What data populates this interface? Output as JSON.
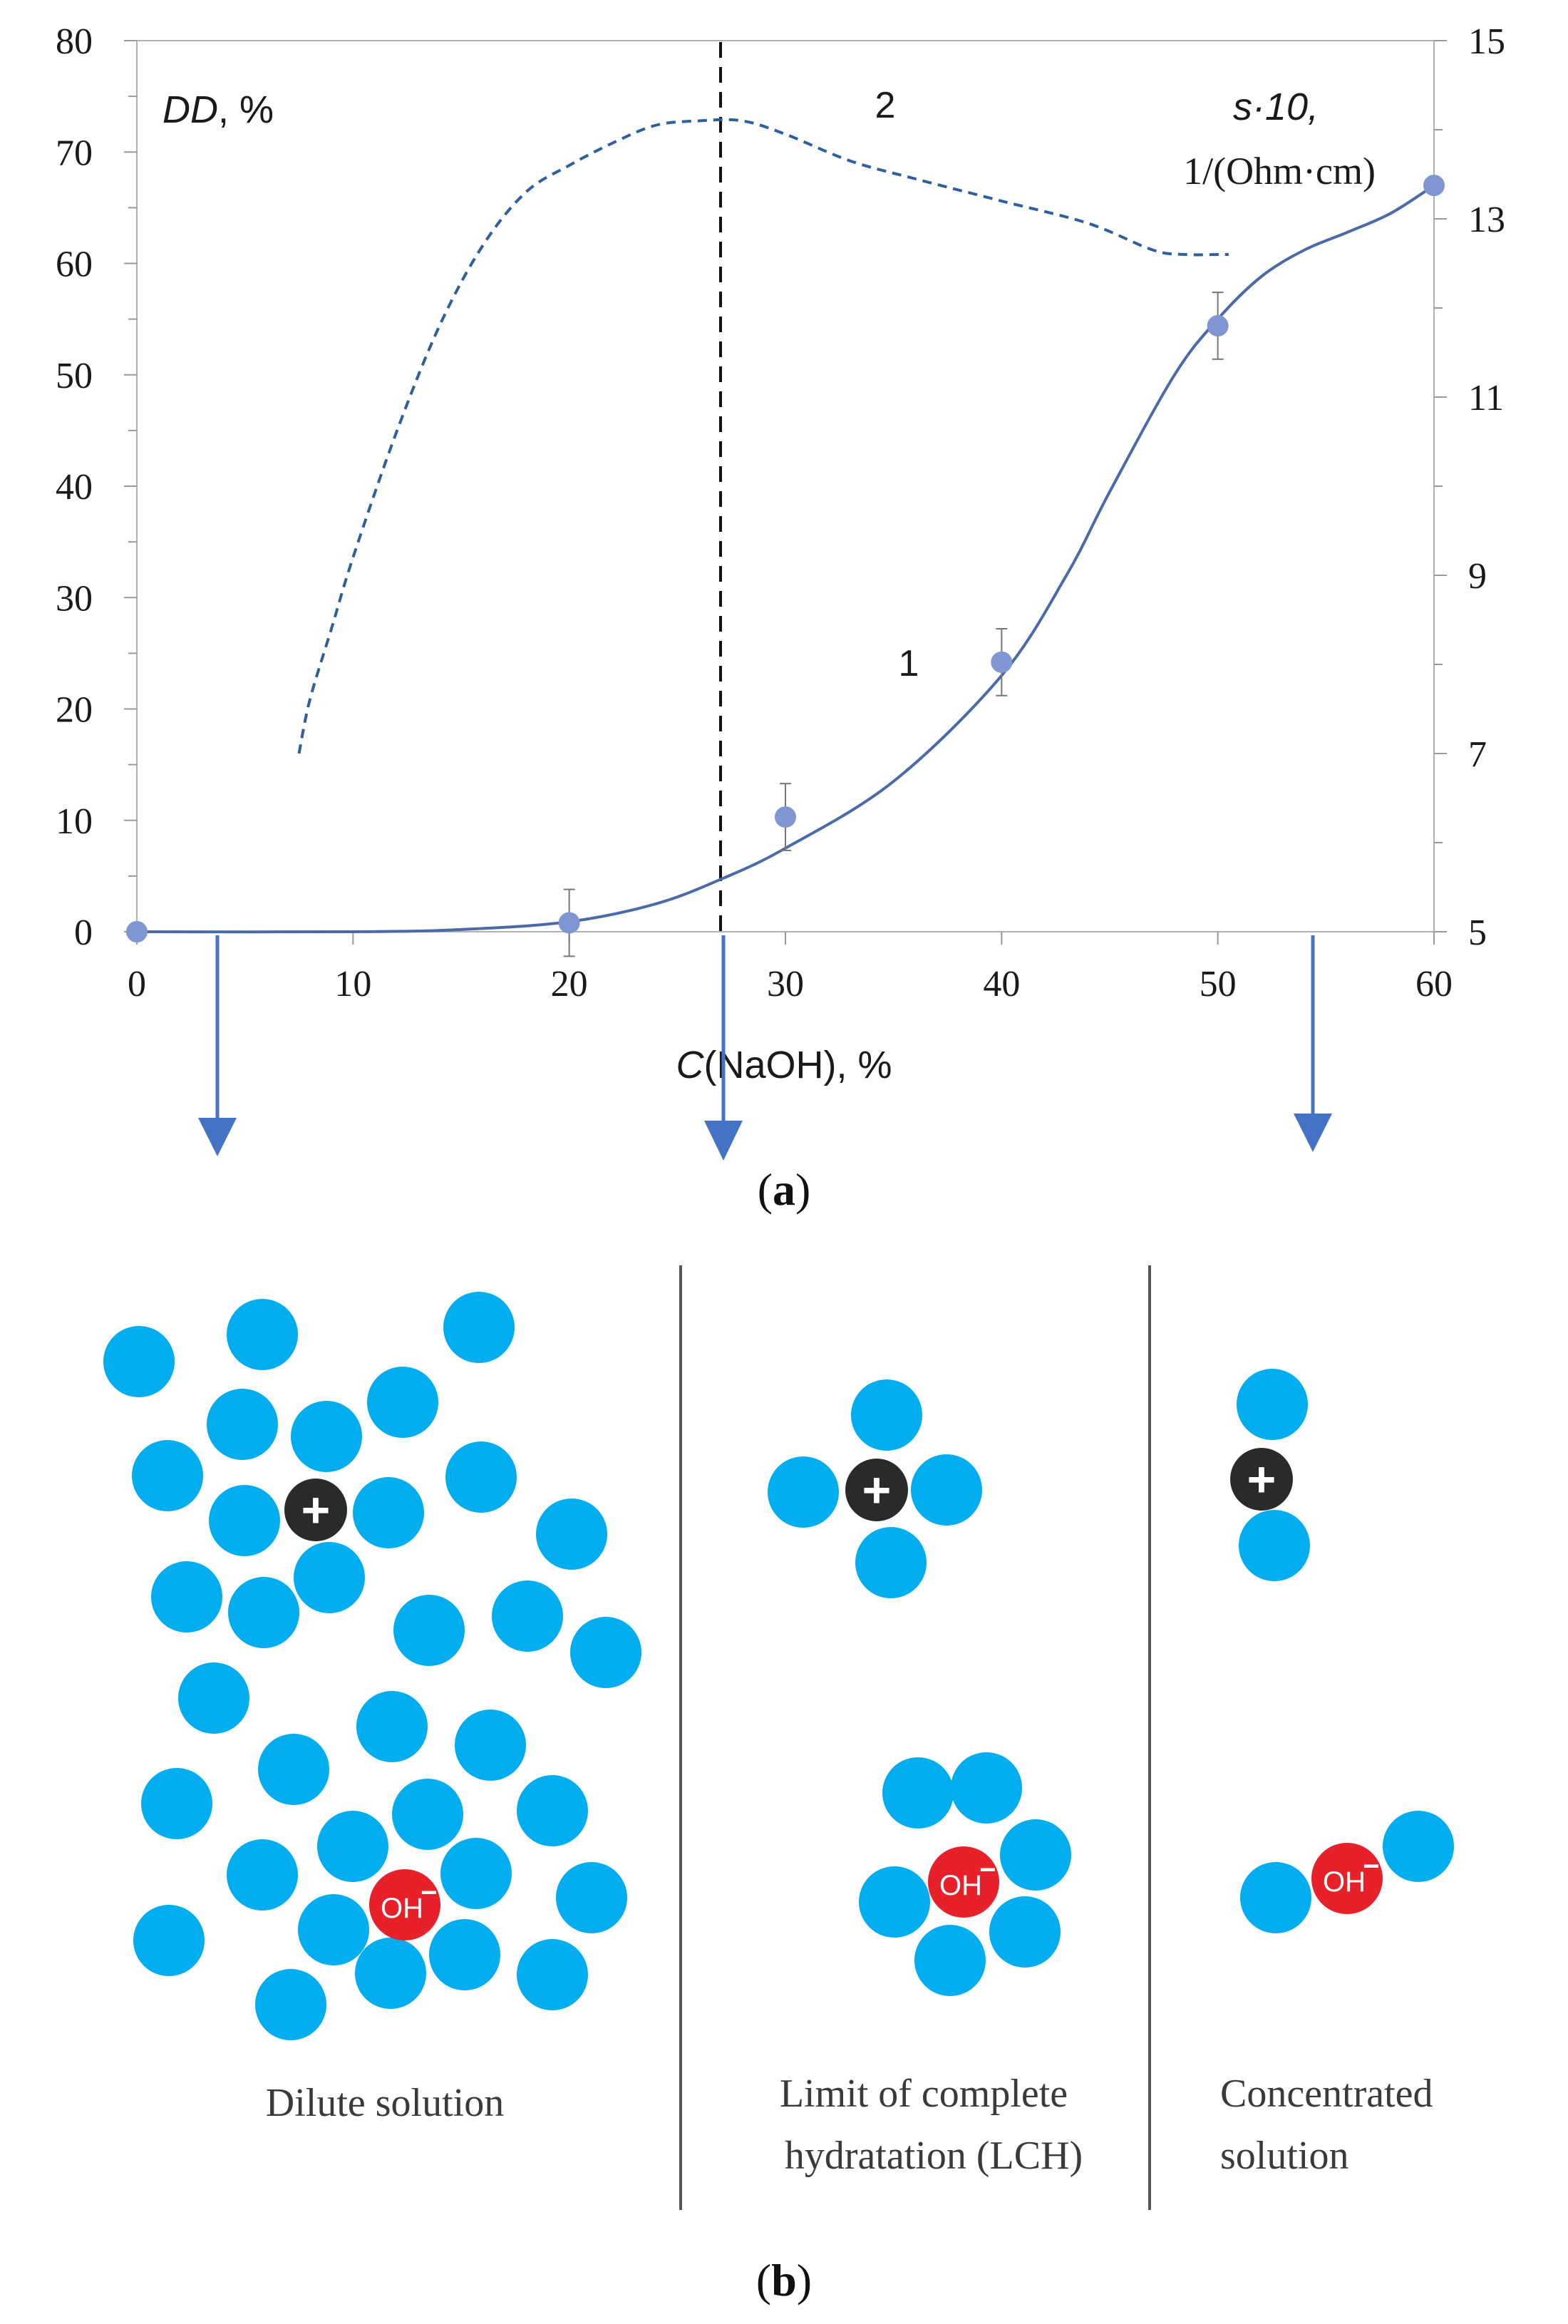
{
  "chart_data": {
    "type": "line",
    "title": "",
    "xlabel": "C(NaOH), %",
    "xlim": [
      0,
      60
    ],
    "x_ticks": [
      0,
      10,
      20,
      30,
      40,
      50,
      60
    ],
    "ylim_left": [
      0,
      80
    ],
    "y_left_ticks": [
      0,
      10,
      20,
      30,
      40,
      50,
      60,
      70,
      80
    ],
    "ylim_right": [
      5,
      15
    ],
    "y_right_ticks": [
      5,
      7,
      9,
      11,
      13,
      15
    ],
    "left_axis_label_italic": "DD",
    "left_axis_label_rest": ", %",
    "right_axis_label_line1": "s·10,",
    "right_axis_label_line2": "1/(Ohm·cm)",
    "divider_x": 27,
    "series": [
      {
        "name": "1",
        "axis": "left",
        "style": "solid",
        "color": "#4a6aa8",
        "points": [
          {
            "x": 0,
            "y": 0,
            "err": 0
          },
          {
            "x": 20,
            "y": 0.8,
            "err": 3.0
          },
          {
            "x": 30,
            "y": 10.3,
            "err": 3.0
          },
          {
            "x": 40,
            "y": 24.2,
            "err": 3.0
          },
          {
            "x": 50,
            "y": 54.4,
            "err": 3.0
          },
          {
            "x": 60,
            "y": 67.0,
            "err": 0
          }
        ],
        "curve": [
          [
            0,
            0
          ],
          [
            10,
            0
          ],
          [
            15,
            0.2
          ],
          [
            20,
            0.9
          ],
          [
            24,
            2.5
          ],
          [
            27,
            4.7
          ],
          [
            30,
            7.5
          ],
          [
            35,
            13.5
          ],
          [
            40,
            23
          ],
          [
            43,
            32
          ],
          [
            45,
            39.5
          ],
          [
            48,
            50
          ],
          [
            50,
            55
          ],
          [
            52,
            58.8
          ],
          [
            54,
            61.2
          ],
          [
            56,
            62.8
          ],
          [
            58,
            64.5
          ],
          [
            60,
            67
          ]
        ]
      },
      {
        "name": "2",
        "axis": "right",
        "style": "dashed",
        "color": "#2f5f9c",
        "curve": [
          [
            7.5,
            7
          ],
          [
            8,
            7.6
          ],
          [
            9,
            8.4
          ],
          [
            10,
            9.2
          ],
          [
            12,
            10.6
          ],
          [
            14,
            11.8
          ],
          [
            16,
            12.7
          ],
          [
            18,
            13.3
          ],
          [
            20,
            13.6
          ],
          [
            22,
            13.85
          ],
          [
            24,
            14.05
          ],
          [
            26,
            14.1
          ],
          [
            28,
            14.1
          ],
          [
            30,
            13.95
          ],
          [
            33,
            13.65
          ],
          [
            36,
            13.45
          ],
          [
            40,
            13.2
          ],
          [
            44,
            12.95
          ],
          [
            47,
            12.65
          ],
          [
            48.5,
            12.6
          ],
          [
            50,
            12.6
          ],
          [
            50.5,
            12.6
          ]
        ]
      }
    ],
    "series_labels": [
      "1",
      "2"
    ]
  },
  "panel_a_label": "a",
  "panel_b_label": "b",
  "ion_labels": {
    "cation": "+",
    "anion": "OH",
    "anion_charge": "−"
  },
  "panel_b": {
    "dilute_label": "Dilute solution",
    "lch_label_line1": "Limit of complete",
    "lch_label_line2": "hydratation (LCH)",
    "concentrated_label_line1": "Concentrated",
    "concentrated_label_line2": "solution"
  },
  "colors": {
    "water": "#00aeef",
    "cation": "#2a2a2a",
    "anion": "#e8202a",
    "arrow": "#4472c4",
    "divider": "#555555"
  }
}
